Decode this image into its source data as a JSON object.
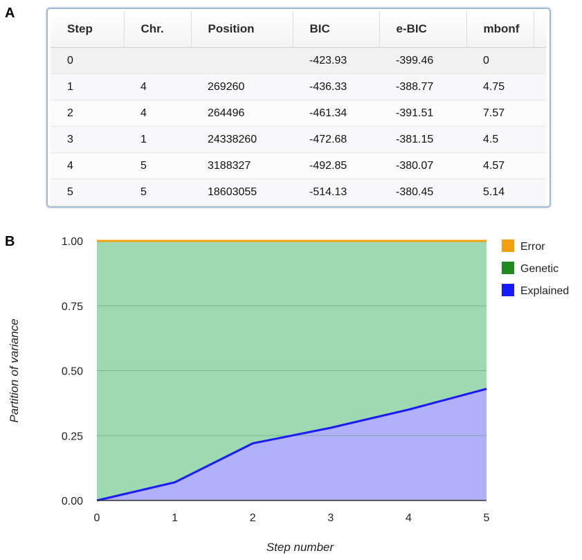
{
  "panels": {
    "a": "A",
    "b": "B"
  },
  "table": {
    "headers": [
      "Step",
      "Chr.",
      "Position",
      "BIC",
      "e-BIC",
      "mbonf"
    ],
    "rows": [
      [
        "0",
        "",
        "",
        "-423.93",
        "-399.46",
        "0"
      ],
      [
        "1",
        "4",
        "269260",
        "-436.33",
        "-388.77",
        "4.75"
      ],
      [
        "2",
        "4",
        "264496",
        "-461.34",
        "-391.51",
        "7.57"
      ],
      [
        "3",
        "1",
        "24338260",
        "-472.68",
        "-381.15",
        "4.5"
      ],
      [
        "4",
        "5",
        "3188327",
        "-492.85",
        "-380.07",
        "4.57"
      ],
      [
        "5",
        "5",
        "18603055",
        "-514.13",
        "-380.45",
        "5.14"
      ]
    ]
  },
  "chart_data": {
    "type": "area",
    "stacked": true,
    "x": [
      0,
      1,
      2,
      3,
      4,
      5
    ],
    "x_tick_labels": [
      "0",
      "1",
      "2",
      "3",
      "4",
      "5"
    ],
    "y_tick_labels": [
      "0.00",
      "0.25",
      "0.50",
      "0.75",
      "1.00"
    ],
    "xlabel": "Step number",
    "ylabel": "Partition of variance",
    "ylim": [
      0,
      1
    ],
    "xlim": [
      0,
      5
    ],
    "grid": true,
    "legend_position": "right",
    "series": [
      {
        "name": "Explained",
        "values": [
          0.0,
          0.07,
          0.22,
          0.28,
          0.35,
          0.43
        ],
        "color": "#1a1aff",
        "fill": "#b0b0fb"
      },
      {
        "name": "Genetic",
        "values": [
          1.0,
          0.93,
          0.78,
          0.72,
          0.65,
          0.57
        ],
        "color": "#1f8a1f",
        "fill": "#9dd9b1"
      },
      {
        "name": "Error",
        "values": [
          0.0,
          0.0,
          0.0,
          0.0,
          0.0,
          0.0
        ],
        "color": "#f3a010",
        "fill": "#f3a010"
      }
    ],
    "legend": [
      {
        "name": "Error",
        "color": "#f3a010"
      },
      {
        "name": "Genetic",
        "color": "#1f8a1f"
      },
      {
        "name": "Explained",
        "color": "#1a1aff"
      }
    ]
  }
}
